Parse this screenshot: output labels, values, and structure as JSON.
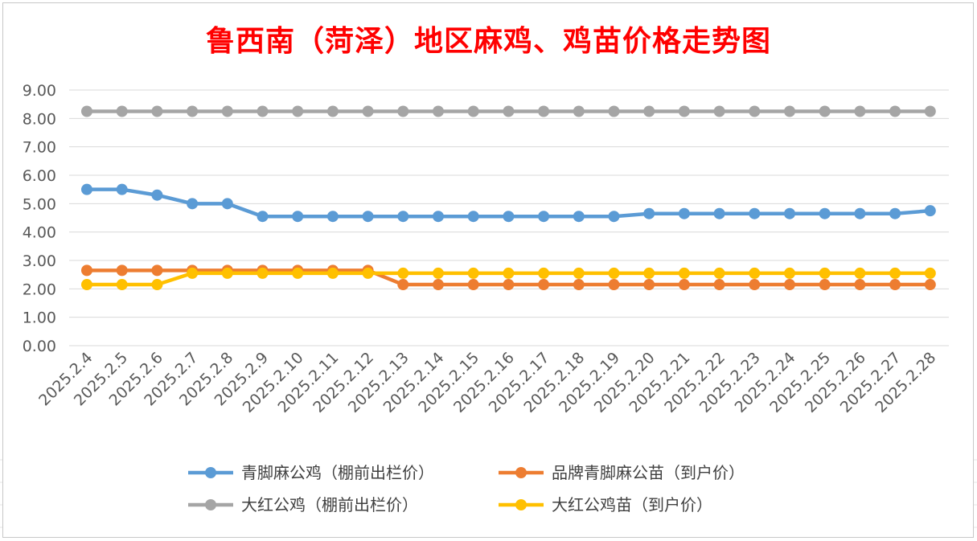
{
  "chart_data": {
    "type": "line",
    "title": "鲁西南（菏泽）地区麻鸡、鸡苗价格走势图",
    "xlabel": "",
    "ylabel": "",
    "ylim": [
      0,
      9
    ],
    "y_ticks": [
      "0.00",
      "1.00",
      "2.00",
      "3.00",
      "4.00",
      "5.00",
      "6.00",
      "7.00",
      "8.00",
      "9.00"
    ],
    "grid": true,
    "legend_position": "bottom",
    "categories": [
      "2025.2.4",
      "2025.2.5",
      "2025.2.6",
      "2025.2.7",
      "2025.2.8",
      "2025.2.9",
      "2025.2.10",
      "2025.2.11",
      "2025.2.12",
      "2025.2.13",
      "2025.2.14",
      "2025.2.15",
      "2025.2.16",
      "2025.2.17",
      "2025.2.18",
      "2025.2.19",
      "2025.2.20",
      "2025.2.21",
      "2025.2.22",
      "2025.2.23",
      "2025.2.24",
      "2025.2.25",
      "2025.2.26",
      "2025.2.27",
      "2025.2.28"
    ],
    "series": [
      {
        "name": "青脚麻公鸡（棚前出栏价）",
        "color": "#5b9bd5",
        "values": [
          5.5,
          5.5,
          5.3,
          5.0,
          5.0,
          4.55,
          4.55,
          4.55,
          4.55,
          4.55,
          4.55,
          4.55,
          4.55,
          4.55,
          4.55,
          4.55,
          4.65,
          4.65,
          4.65,
          4.65,
          4.65,
          4.65,
          4.65,
          4.65,
          4.75
        ]
      },
      {
        "name": "品牌青脚麻公苗（到户价）",
        "color": "#ed7d31",
        "values": [
          2.65,
          2.65,
          2.65,
          2.65,
          2.65,
          2.65,
          2.65,
          2.65,
          2.65,
          2.15,
          2.15,
          2.15,
          2.15,
          2.15,
          2.15,
          2.15,
          2.15,
          2.15,
          2.15,
          2.15,
          2.15,
          2.15,
          2.15,
          2.15,
          2.15
        ]
      },
      {
        "name": "大红公鸡（棚前出栏价）",
        "color": "#a5a5a5",
        "values": [
          8.25,
          8.25,
          8.25,
          8.25,
          8.25,
          8.25,
          8.25,
          8.25,
          8.25,
          8.25,
          8.25,
          8.25,
          8.25,
          8.25,
          8.25,
          8.25,
          8.25,
          8.25,
          8.25,
          8.25,
          8.25,
          8.25,
          8.25,
          8.25,
          8.25
        ]
      },
      {
        "name": "大红公鸡苗（到户价）",
        "color": "#ffc000",
        "values": [
          2.15,
          2.15,
          2.15,
          2.55,
          2.55,
          2.55,
          2.55,
          2.55,
          2.55,
          2.55,
          2.55,
          2.55,
          2.55,
          2.55,
          2.55,
          2.55,
          2.55,
          2.55,
          2.55,
          2.55,
          2.55,
          2.55,
          2.55,
          2.55,
          2.55
        ]
      }
    ]
  }
}
